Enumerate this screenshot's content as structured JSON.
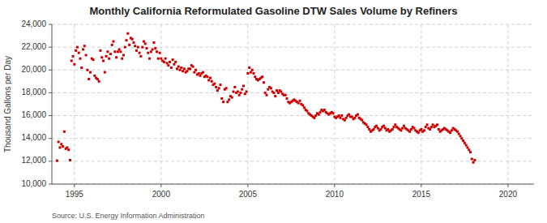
{
  "chart_data": {
    "type": "scatter",
    "title": "Monthly California Reformulated Gasoline DTW Sales Volume by Refiners",
    "ylabel": "Thousand Gallons per Day",
    "annotations": [
      "Source: U.S. Energy Information Administration"
    ],
    "color": "#CC0000",
    "marker": "square",
    "grid": true,
    "xlim": [
      1993.7,
      2021.5
    ],
    "xticks": [
      1995,
      2000,
      2005,
      2010,
      2015,
      2020
    ],
    "ylim": [
      10000,
      24000
    ],
    "yticks": [
      {
        "value": 10000,
        "label": "10,000"
      },
      {
        "value": 12000,
        "label": "12,000"
      },
      {
        "value": 14000,
        "label": "14,000"
      },
      {
        "value": 16000,
        "label": "16,000"
      },
      {
        "value": 18000,
        "label": "18,000"
      },
      {
        "value": 20000,
        "label": "20,000"
      },
      {
        "value": 22000,
        "label": "22,000"
      },
      {
        "value": 24000,
        "label": "24,000"
      }
    ],
    "x": [
      1994,
      1994.0833333333,
      1994.1666666667,
      1994.25,
      1994.3333333333,
      1994.4166666667,
      1994.5,
      1994.5833333333,
      1994.6666666667,
      1994.75,
      1994.8333333333,
      1994.9166666667,
      1995,
      1995.0833333333,
      1995.1666666667,
      1995.25,
      1995.3333333333,
      1995.4166666667,
      1995.5,
      1995.5833333333,
      1995.6666666667,
      1995.75,
      1995.8333333333,
      1995.9166666667,
      1996,
      1996.0833333333,
      1996.1666666667,
      1996.25,
      1996.3333333333,
      1996.4166666667,
      1996.5,
      1996.5833333333,
      1996.6666666667,
      1996.75,
      1996.8333333333,
      1996.9166666667,
      1997,
      1997.0833333333,
      1997.1666666667,
      1997.25,
      1997.3333333333,
      1997.4166666667,
      1997.5,
      1997.5833333333,
      1997.6666666667,
      1997.75,
      1997.8333333333,
      1997.9166666667,
      1998,
      1998.0833333333,
      1998.1666666667,
      1998.25,
      1998.3333333333,
      1998.4166666667,
      1998.5,
      1998.5833333333,
      1998.6666666667,
      1998.75,
      1998.8333333333,
      1998.9166666667,
      1999,
      1999.0833333333,
      1999.1666666667,
      1999.25,
      1999.3333333333,
      1999.4166666667,
      1999.5,
      1999.5833333333,
      1999.6666666667,
      1999.75,
      1999.8333333333,
      1999.9166666667,
      2000,
      2000.0833333333,
      2000.1666666667,
      2000.25,
      2000.3333333333,
      2000.4166666667,
      2000.5,
      2000.5833333333,
      2000.6666666667,
      2000.75,
      2000.8333333333,
      2000.9166666667,
      2001,
      2001.0833333333,
      2001.1666666667,
      2001.25,
      2001.3333333333,
      2001.4166666667,
      2001.5,
      2001.5833333333,
      2001.6666666667,
      2001.75,
      2001.8333333333,
      2001.9166666667,
      2002,
      2002.0833333333,
      2002.1666666667,
      2002.25,
      2002.3333333333,
      2002.4166666667,
      2002.5,
      2002.5833333333,
      2002.6666666667,
      2002.75,
      2002.8333333333,
      2002.9166666667,
      2003,
      2003.0833333333,
      2003.1666666667,
      2003.25,
      2003.3333333333,
      2003.4166666667,
      2003.5,
      2003.5833333333,
      2003.6666666667,
      2003.75,
      2003.8333333333,
      2003.9166666667,
      2004,
      2004.0833333333,
      2004.1666666667,
      2004.25,
      2004.3333333333,
      2004.4166666667,
      2004.5,
      2004.5833333333,
      2004.6666666667,
      2004.75,
      2004.8333333333,
      2004.9166666667,
      2005,
      2005.0833333333,
      2005.1666666667,
      2005.25,
      2005.3333333333,
      2005.4166666667,
      2005.5,
      2005.5833333333,
      2005.6666666667,
      2005.75,
      2005.8333333333,
      2005.9166666667,
      2006,
      2006.0833333333,
      2006.1666666667,
      2006.25,
      2006.3333333333,
      2006.4166666667,
      2006.5,
      2006.5833333333,
      2006.6666666667,
      2006.75,
      2006.8333333333,
      2006.9166666667,
      2007,
      2007.0833333333,
      2007.1666666667,
      2007.25,
      2007.3333333333,
      2007.4166666667,
      2007.5,
      2007.5833333333,
      2007.6666666667,
      2007.75,
      2007.8333333333,
      2007.9166666667,
      2008,
      2008.0833333333,
      2008.1666666667,
      2008.25,
      2008.3333333333,
      2008.4166666667,
      2008.5,
      2008.5833333333,
      2008.6666666667,
      2008.75,
      2008.8333333333,
      2008.9166666667,
      2009,
      2009.0833333333,
      2009.1666666667,
      2009.25,
      2009.3333333333,
      2009.4166666667,
      2009.5,
      2009.5833333333,
      2009.6666666667,
      2009.75,
      2009.8333333333,
      2009.9166666667,
      2010,
      2010.0833333333,
      2010.1666666667,
      2010.25,
      2010.3333333333,
      2010.4166666667,
      2010.5,
      2010.5833333333,
      2010.6666666667,
      2010.75,
      2010.8333333333,
      2010.9166666667,
      2011,
      2011.0833333333,
      2011.1666666667,
      2011.25,
      2011.3333333333,
      2011.4166666667,
      2011.5,
      2011.5833333333,
      2011.6666666667,
      2011.75,
      2011.8333333333,
      2011.9166666667,
      2012,
      2012.0833333333,
      2012.1666666667,
      2012.25,
      2012.3333333333,
      2012.4166666667,
      2012.5,
      2012.5833333333,
      2012.6666666667,
      2012.75,
      2012.8333333333,
      2012.9166666667,
      2013,
      2013.0833333333,
      2013.1666666667,
      2013.25,
      2013.3333333333,
      2013.4166666667,
      2013.5,
      2013.5833333333,
      2013.6666666667,
      2013.75,
      2013.8333333333,
      2013.9166666667,
      2014,
      2014.0833333333,
      2014.1666666667,
      2014.25,
      2014.3333333333,
      2014.4166666667,
      2014.5,
      2014.5833333333,
      2014.6666666667,
      2014.75,
      2014.8333333333,
      2014.9166666667,
      2015,
      2015.0833333333,
      2015.1666666667,
      2015.25,
      2015.3333333333,
      2015.4166666667,
      2015.5,
      2015.5833333333,
      2015.6666666667,
      2015.75,
      2015.8333333333,
      2015.9166666667,
      2016,
      2016.0833333333,
      2016.1666666667,
      2016.25,
      2016.3333333333,
      2016.4166666667,
      2016.5,
      2016.5833333333,
      2016.6666666667,
      2016.75,
      2016.8333333333,
      2016.9166666667,
      2017,
      2017.0833333333,
      2017.1666666667,
      2017.25,
      2017.3333333333,
      2017.4166666667,
      2017.5,
      2017.5833333333,
      2017.6666666667,
      2017.75,
      2017.8333333333,
      2017.9166666667,
      2018,
      2018.0833333333
    ],
    "values": [
      12050,
      13700,
      13200,
      13500,
      13300,
      14600,
      13100,
      13200,
      13000,
      12100,
      20800,
      21200,
      20500,
      21700,
      22000,
      21500,
      21000,
      20200,
      21800,
      22100,
      21300,
      20000,
      19200,
      19800,
      21000,
      20900,
      19500,
      19300,
      19200,
      19000,
      21700,
      21100,
      20800,
      19800,
      21200,
      21600,
      21000,
      21400,
      22200,
      22500,
      21600,
      21100,
      21600,
      21800,
      21600,
      21000,
      21300,
      22000,
      22600,
      23200,
      22200,
      22800,
      22700,
      22400,
      22100,
      21700,
      22000,
      21500,
      21200,
      22000,
      22500,
      22300,
      21900,
      21500,
      21000,
      21600,
      21800,
      22400,
      21900,
      21600,
      21000,
      21500,
      21000,
      20800,
      20700,
      21000,
      20600,
      20400,
      20700,
      20200,
      20900,
      20500,
      20700,
      20100,
      20300,
      20000,
      20200,
      19900,
      20100,
      19800,
      19900,
      20100,
      20100,
      20400,
      20300,
      19800,
      20000,
      19600,
      19700,
      19500,
      19700,
      19800,
      19400,
      19500,
      19400,
      19100,
      19300,
      19000,
      18700,
      18800,
      18500,
      18200,
      18400,
      18700,
      17500,
      17200,
      18300,
      18400,
      17200,
      17400,
      17700,
      17600,
      18100,
      18500,
      18000,
      18100,
      17800,
      18000,
      18300,
      18600,
      17900,
      18100,
      19700,
      20200,
      19800,
      20000,
      19700,
      19400,
      19200,
      19100,
      19200,
      19300,
      19400,
      18900,
      18000,
      17800,
      18300,
      18500,
      18400,
      18100,
      18000,
      17700,
      18200,
      18000,
      18200,
      18100,
      17900,
      17800,
      17800,
      17500,
      17200,
      17100,
      17200,
      17300,
      17400,
      17300,
      17200,
      17100,
      17300,
      17000,
      16900,
      16700,
      16500,
      16400,
      16200,
      16100,
      16000,
      15900,
      15800,
      16000,
      16200,
      16100,
      16300,
      16500,
      16400,
      16500,
      16300,
      16200,
      16100,
      16200,
      16300,
      16200,
      15900,
      15800,
      15900,
      16000,
      15800,
      16000,
      15700,
      15600,
      15800,
      16000,
      16100,
      15900,
      15900,
      15700,
      15800,
      16000,
      16100,
      15800,
      15700,
      15600,
      15400,
      15300,
      15200,
      15000,
      14800,
      14600,
      14700,
      14800,
      15000,
      15100,
      14900,
      14700,
      14800,
      15000,
      15100,
      14900,
      14700,
      14800,
      14600,
      14700,
      14800,
      15000,
      15200,
      15000,
      14900,
      14800,
      14700,
      14900,
      15100,
      14900,
      14800,
      14700,
      14600,
      14800,
      15000,
      14900,
      14700,
      14600,
      14500,
      14700,
      14800,
      14600,
      14700,
      15000,
      15200,
      14900,
      14800,
      15000,
      15200,
      15000,
      15100,
      15200,
      14800,
      14600,
      14700,
      14800,
      14900,
      14800,
      14700,
      14600,
      14500,
      14700,
      14900,
      14800,
      14700,
      14600,
      14400,
      14200,
      14000,
      13800,
      13600,
      13400,
      13200,
      13000,
      12800,
      12200,
      11900,
      12100
    ]
  }
}
